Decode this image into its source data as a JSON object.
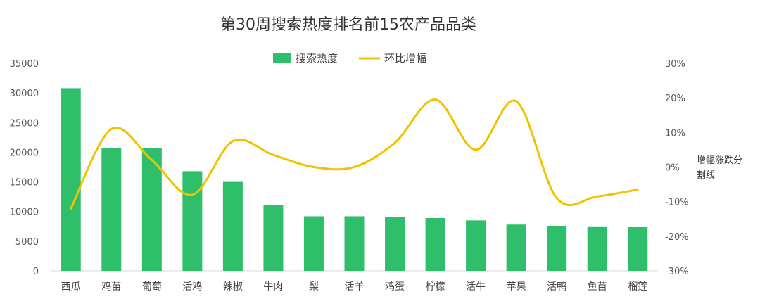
{
  "chart_data": {
    "type": "bar",
    "title": "第30周搜索热度排名前15农产品品类",
    "categories": [
      "西瓜",
      "鸡苗",
      "葡萄",
      "活鸡",
      "辣椒",
      "牛肉",
      "梨",
      "活羊",
      "鸡蛋",
      "柠檬",
      "活牛",
      "苹果",
      "活鸭",
      "鱼苗",
      "榴莲"
    ],
    "series": [
      {
        "name": "搜索热度",
        "type": "bar",
        "axis": "left",
        "color": "#2fbf6a",
        "values": [
          30800,
          20700,
          20700,
          16800,
          15000,
          11100,
          9200,
          9200,
          9100,
          8900,
          8500,
          7800,
          7600,
          7500,
          7400
        ]
      },
      {
        "name": "环比增幅",
        "type": "line",
        "axis": "right",
        "color": "#f2c200",
        "smooth": true,
        "values": [
          -12,
          11,
          2,
          -8,
          7.5,
          3.5,
          0,
          0,
          7,
          19.5,
          5,
          19,
          -9,
          -8.5,
          -6.5
        ]
      }
    ],
    "y_left": {
      "ylim": [
        0,
        35000
      ],
      "ticks": [
        "0",
        "5000",
        "10000",
        "15000",
        "20000",
        "25000",
        "30000",
        "35000"
      ]
    },
    "y_right": {
      "ylim": [
        -30,
        30
      ],
      "ticks": [
        "-30%",
        "-20%",
        "-10%",
        "0%",
        "10%",
        "20%",
        "30%"
      ]
    },
    "reference_line": {
      "value": 0,
      "axis": "right",
      "label": "增幅涨跌分割线"
    },
    "legend_position": "top-center",
    "grid": false
  }
}
